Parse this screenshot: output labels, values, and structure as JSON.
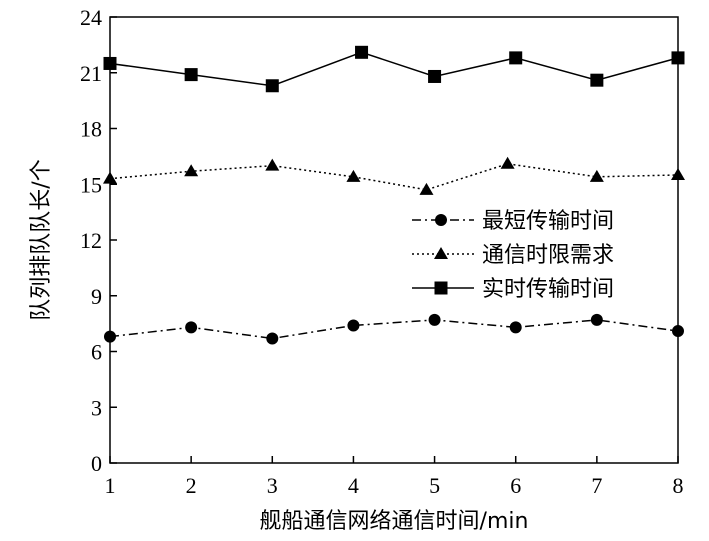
{
  "chart_data": {
    "type": "line",
    "title": "",
    "xlabel": "舰船通信网络通信时间/min",
    "ylabel": "队列排队队长/个",
    "xlim": [
      1,
      8
    ],
    "ylim": [
      0,
      24
    ],
    "xticks": [
      1,
      2,
      3,
      4,
      5,
      6,
      7,
      8
    ],
    "yticks": [
      0,
      3,
      6,
      9,
      12,
      15,
      18,
      21,
      24
    ],
    "grid": false,
    "legend_position": "center-right",
    "series": [
      {
        "name": "最短传输时间",
        "marker": "circle",
        "line_style": "dash-dot",
        "x": [
          1,
          2,
          3,
          4,
          5,
          6,
          7,
          8
        ],
        "y": [
          6.8,
          7.3,
          6.7,
          7.4,
          7.7,
          7.3,
          7.7,
          7.1
        ]
      },
      {
        "name": "通信时限需求",
        "marker": "triangle",
        "line_style": "dotted",
        "x": [
          1,
          2,
          3,
          4,
          4.9,
          5.9,
          7,
          8
        ],
        "y": [
          15.3,
          15.7,
          16.0,
          15.4,
          14.7,
          16.1,
          15.4,
          15.5
        ]
      },
      {
        "name": "实时传输时间",
        "marker": "square",
        "line_style": "solid",
        "x": [
          1,
          2,
          3,
          4.1,
          5,
          6,
          7,
          8
        ],
        "y": [
          21.5,
          20.9,
          20.3,
          22.1,
          20.8,
          21.8,
          20.6,
          21.8
        ]
      }
    ],
    "colors": {
      "line": "#000000",
      "axis": "#000000",
      "background": "#ffffff"
    }
  }
}
